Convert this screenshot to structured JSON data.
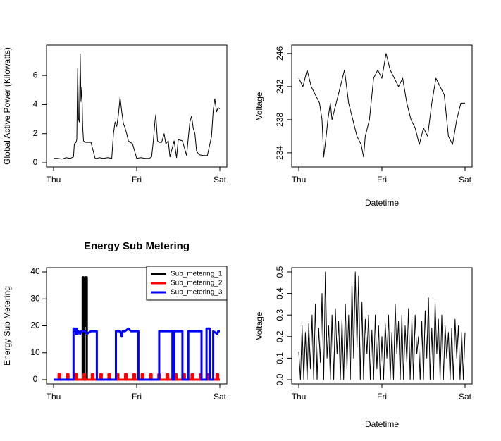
{
  "chart_data": [
    {
      "type": "line",
      "title": "",
      "xlabel": "",
      "ylabel": "Global Active Power (Kilowatts)",
      "x_ticks": [
        "Thu",
        "Fri",
        "Sat"
      ],
      "x_domain": [
        0,
        2
      ],
      "ylim": [
        0,
        7.8
      ],
      "y_ticks": [
        0,
        2,
        4,
        6
      ],
      "x": [
        0.0,
        0.05,
        0.1,
        0.15,
        0.2,
        0.24,
        0.25,
        0.27,
        0.28,
        0.29,
        0.3,
        0.31,
        0.32,
        0.33,
        0.34,
        0.35,
        0.36,
        0.38,
        0.4,
        0.45,
        0.5,
        0.52,
        0.55,
        0.6,
        0.65,
        0.7,
        0.72,
        0.74,
        0.76,
        0.78,
        0.8,
        0.82,
        0.84,
        0.86,
        0.88,
        0.9,
        0.95,
        1.0,
        1.05,
        1.1,
        1.15,
        1.18,
        1.2,
        1.22,
        1.23,
        1.25,
        1.27,
        1.3,
        1.33,
        1.35,
        1.38,
        1.4,
        1.45,
        1.48,
        1.5,
        1.55,
        1.6,
        1.62,
        1.64,
        1.66,
        1.68,
        1.7,
        1.72,
        1.75,
        1.8,
        1.85,
        1.9,
        1.92,
        1.94,
        1.96,
        1.98,
        2.0
      ],
      "series": [
        {
          "values": [
            0.3,
            0.3,
            0.25,
            0.35,
            0.3,
            0.4,
            1.3,
            1.4,
            1.6,
            6.5,
            3.0,
            2.8,
            7.5,
            4.2,
            5.2,
            2.5,
            1.5,
            1.4,
            1.4,
            1.4,
            0.3,
            0.3,
            0.35,
            0.3,
            0.35,
            0.3,
            2.0,
            2.8,
            2.5,
            3.3,
            4.5,
            3.5,
            2.7,
            2.4,
            2.0,
            1.5,
            1.3,
            0.3,
            0.35,
            0.3,
            0.3,
            0.4,
            1.5,
            2.9,
            3.3,
            1.5,
            1.4,
            1.4,
            2.0,
            1.3,
            1.5,
            0.4,
            1.5,
            0.35,
            1.6,
            1.5,
            0.5,
            1.7,
            2.8,
            3.2,
            2.4,
            2.0,
            0.8,
            0.55,
            0.5,
            0.5,
            1.8,
            3.6,
            4.4,
            3.5,
            3.8,
            3.7
          ]
        }
      ],
      "grid": false,
      "legend": "none"
    },
    {
      "type": "line",
      "title": "",
      "xlabel": "Datetime",
      "ylabel": "Voltage",
      "x_ticks": [
        "Thu",
        "Fri",
        "Sat"
      ],
      "x_domain": [
        0,
        2
      ],
      "ylim": [
        232.8,
        246.5
      ],
      "y_ticks": [
        234,
        238,
        242,
        246
      ],
      "x": [
        0.0,
        0.05,
        0.1,
        0.15,
        0.2,
        0.25,
        0.28,
        0.3,
        0.33,
        0.35,
        0.38,
        0.4,
        0.45,
        0.5,
        0.55,
        0.6,
        0.65,
        0.7,
        0.75,
        0.78,
        0.8,
        0.85,
        0.9,
        0.95,
        1.0,
        1.05,
        1.1,
        1.15,
        1.2,
        1.25,
        1.3,
        1.35,
        1.4,
        1.45,
        1.5,
        1.55,
        1.6,
        1.65,
        1.7,
        1.75,
        1.8,
        1.85,
        1.9,
        1.95,
        2.0
      ],
      "series": [
        {
          "values": [
            243,
            242,
            244,
            242,
            241,
            240,
            238,
            233.5,
            236,
            238,
            240,
            238,
            240,
            242,
            244,
            240,
            238,
            236,
            235,
            233.5,
            236,
            238,
            243,
            244,
            243,
            246,
            244,
            243,
            242,
            243,
            240,
            238,
            237,
            235,
            237,
            236,
            240,
            243,
            242,
            241,
            236,
            235,
            238,
            240,
            240
          ]
        }
      ],
      "grid": false,
      "legend": "none"
    },
    {
      "type": "line",
      "title": "Energy Sub Metering",
      "xlabel": "",
      "ylabel": "Energy Sub Metering",
      "x_ticks": [
        "Thu",
        "Fri",
        "Sat"
      ],
      "x_domain": [
        0,
        2
      ],
      "ylim": [
        0,
        40
      ],
      "y_ticks": [
        0,
        10,
        20,
        30,
        40
      ],
      "legend": "top-right",
      "grid": false,
      "series": [
        {
          "name": "Sub_metering_1",
          "color": "#000000",
          "x": [
            0.0,
            0.35,
            0.35,
            0.36,
            0.36,
            0.37,
            0.37,
            0.39,
            0.39,
            0.4,
            0.4,
            2.0
          ],
          "values": [
            0,
            0,
            38,
            38,
            0,
            0,
            20,
            20,
            38,
            38,
            0,
            0
          ]
        },
        {
          "name": "Sub_metering_2",
          "color": "#ff0000",
          "x": [
            0.0,
            0.06,
            0.06,
            0.08,
            0.08,
            0.16,
            0.16,
            0.18,
            0.18,
            0.26,
            0.26,
            0.28,
            0.28,
            0.36,
            0.36,
            0.38,
            0.38,
            0.46,
            0.46,
            0.48,
            0.48,
            0.56,
            0.56,
            0.58,
            0.58,
            0.66,
            0.66,
            0.68,
            0.68,
            0.76,
            0.76,
            0.78,
            0.78,
            0.86,
            0.86,
            0.88,
            0.88,
            0.96,
            0.96,
            0.98,
            0.98,
            1.06,
            1.06,
            1.08,
            1.08,
            1.16,
            1.16,
            1.18,
            1.18,
            1.26,
            1.26,
            1.28,
            1.28,
            1.36,
            1.36,
            1.38,
            1.38,
            1.46,
            1.46,
            1.48,
            1.48,
            1.56,
            1.56,
            1.58,
            1.58,
            1.66,
            1.66,
            1.68,
            1.68,
            1.76,
            1.76,
            1.78,
            1.78,
            1.86,
            1.86,
            1.88,
            1.88,
            1.96,
            1.96,
            1.98,
            1.98,
            2.0
          ],
          "values": [
            0,
            0,
            2,
            2,
            0,
            0,
            2,
            2,
            0,
            0,
            2,
            2,
            0,
            0,
            2,
            2,
            0,
            0,
            2,
            2,
            0,
            0,
            2,
            2,
            0,
            0,
            2,
            2,
            0,
            0,
            2,
            2,
            0,
            0,
            2,
            2,
            0,
            0,
            2,
            2,
            0,
            0,
            2,
            2,
            0,
            0,
            2,
            2,
            0,
            0,
            2,
            2,
            0,
            0,
            2,
            2,
            0,
            0,
            2,
            2,
            0,
            0,
            2,
            2,
            0,
            0,
            2,
            2,
            0,
            0,
            2,
            2,
            0,
            0,
            2,
            2,
            0,
            0,
            2,
            2,
            0,
            0
          ]
        },
        {
          "name": "Sub_metering_3",
          "color": "#0000ff",
          "x": [
            0.0,
            0.24,
            0.24,
            0.26,
            0.27,
            0.28,
            0.29,
            0.3,
            0.32,
            0.33,
            0.38,
            0.4,
            0.45,
            0.52,
            0.52,
            0.75,
            0.75,
            0.8,
            0.82,
            0.83,
            0.86,
            0.9,
            0.93,
            0.95,
            1.02,
            1.02,
            1.27,
            1.27,
            1.35,
            1.4,
            1.43,
            1.43,
            1.45,
            1.45,
            1.55,
            1.55,
            1.62,
            1.62,
            1.78,
            1.78,
            1.84,
            1.84,
            1.88,
            1.88,
            1.92,
            1.92,
            1.97,
            1.98,
            2.0
          ],
          "values": [
            0,
            0,
            19,
            19,
            17,
            19,
            17,
            18,
            17,
            18,
            18,
            17,
            18,
            18,
            0,
            0,
            18,
            18,
            16,
            18,
            18,
            19,
            18,
            18,
            18,
            0,
            0,
            18,
            18,
            18,
            18,
            0,
            0,
            18,
            18,
            0,
            0,
            18,
            18,
            0,
            0,
            19,
            19,
            0,
            0,
            18,
            17,
            18,
            18
          ]
        }
      ]
    },
    {
      "type": "line",
      "title": "",
      "xlabel": "Datetime",
      "ylabel": "Voltage",
      "x_ticks": [
        "Thu",
        "Fri",
        "Sat"
      ],
      "x_domain": [
        0,
        2
      ],
      "ylim": [
        0,
        0.5
      ],
      "y_ticks": [
        0.0,
        0.1,
        0.2,
        0.3,
        0.4,
        0.5
      ],
      "series": [
        {
          "x": [
            0.0,
            0.02,
            0.04,
            0.06,
            0.08,
            0.1,
            0.12,
            0.14,
            0.16,
            0.18,
            0.2,
            0.22,
            0.24,
            0.26,
            0.28,
            0.3,
            0.32,
            0.34,
            0.36,
            0.38,
            0.4,
            0.42,
            0.44,
            0.46,
            0.48,
            0.5,
            0.52,
            0.54,
            0.56,
            0.58,
            0.6,
            0.62,
            0.64,
            0.66,
            0.68,
            0.7,
            0.72,
            0.74,
            0.76,
            0.78,
            0.8,
            0.82,
            0.84,
            0.86,
            0.88,
            0.9,
            0.92,
            0.94,
            0.96,
            0.98,
            1.0,
            1.02,
            1.04,
            1.06,
            1.08,
            1.1,
            1.12,
            1.14,
            1.16,
            1.18,
            1.2,
            1.22,
            1.24,
            1.26,
            1.28,
            1.3,
            1.32,
            1.34,
            1.36,
            1.38,
            1.4,
            1.42,
            1.44,
            1.46,
            1.48,
            1.5,
            1.52,
            1.54,
            1.56,
            1.58,
            1.6,
            1.62,
            1.64,
            1.66,
            1.68,
            1.7,
            1.72,
            1.74,
            1.76,
            1.78,
            1.8,
            1.82,
            1.84,
            1.86,
            1.88,
            1.9,
            1.92,
            1.94,
            1.96,
            1.98,
            2.0
          ],
          "values": [
            0.13,
            0.0,
            0.25,
            0.0,
            0.22,
            0.0,
            0.26,
            0.05,
            0.3,
            0.0,
            0.35,
            0.0,
            0.24,
            0.08,
            0.4,
            0.0,
            0.5,
            0.1,
            0.25,
            0.0,
            0.3,
            0.0,
            0.33,
            0.12,
            0.27,
            0.0,
            0.28,
            0.0,
            0.35,
            0.05,
            0.3,
            0.0,
            0.45,
            0.1,
            0.5,
            0.15,
            0.48,
            0.0,
            0.36,
            0.0,
            0.28,
            0.12,
            0.3,
            0.0,
            0.23,
            0.0,
            0.3,
            0.05,
            0.25,
            0.0,
            0.2,
            0.0,
            0.26,
            0.1,
            0.3,
            0.0,
            0.22,
            0.0,
            0.35,
            0.12,
            0.27,
            0.0,
            0.3,
            0.0,
            0.25,
            0.08,
            0.33,
            0.0,
            0.28,
            0.0,
            0.3,
            0.12,
            0.2,
            0.0,
            0.27,
            0.0,
            0.32,
            0.1,
            0.38,
            0.0,
            0.24,
            0.0,
            0.36,
            0.12,
            0.28,
            0.0,
            0.3,
            0.0,
            0.25,
            0.1,
            0.22,
            0.0,
            0.24,
            0.0,
            0.28,
            0.1,
            0.25,
            0.0,
            0.22,
            0.0,
            0.22
          ]
        }
      ],
      "grid": false,
      "legend": "none"
    }
  ]
}
